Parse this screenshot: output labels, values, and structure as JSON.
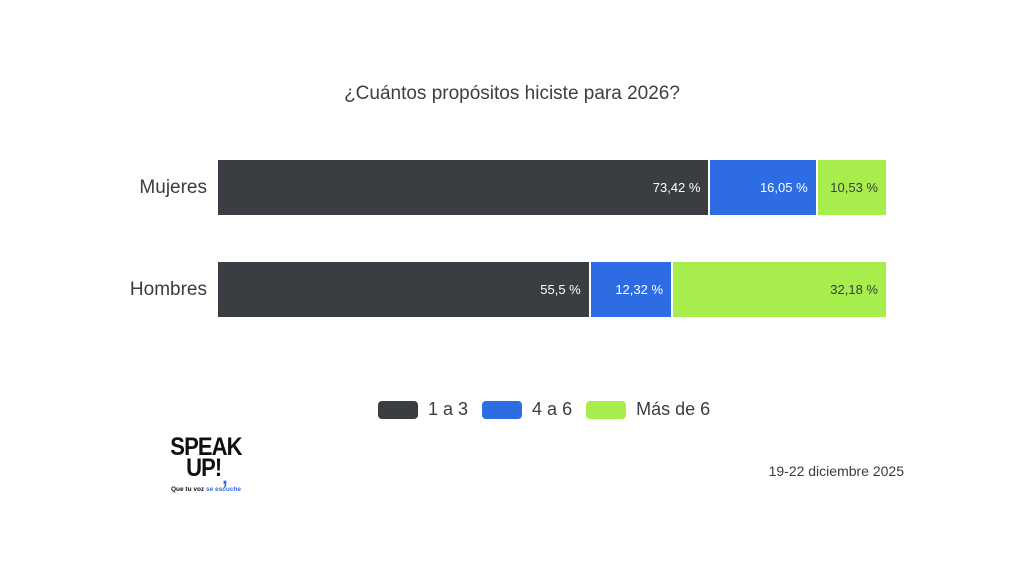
{
  "title": "¿Cuántos propósitos hiciste para 2026?",
  "chart_data": {
    "type": "bar",
    "stacked": true,
    "orientation": "horizontal",
    "unit": "%",
    "title": "¿Cuántos propósitos hiciste para 2026?",
    "categories": [
      "Mujeres",
      "Hombres"
    ],
    "series": [
      {
        "name": "1 a 3",
        "color": "#3a3d42",
        "text_color": "#ffffff",
        "values": [
          73.42,
          55.5
        ],
        "labels": [
          "73,42 %",
          "55,5 %"
        ]
      },
      {
        "name": "4 a 6",
        "color": "#2e6ce4",
        "text_color": "#ffffff",
        "values": [
          16.05,
          12.32
        ],
        "labels": [
          "16,05 %",
          "12,32 %"
        ]
      },
      {
        "name": "Más de 6",
        "color": "#a7ed4b",
        "text_color": "#3a3d42",
        "values": [
          10.53,
          32.18
        ],
        "labels": [
          "10,53 %",
          "32,18 %"
        ]
      }
    ],
    "xlim": [
      0,
      100
    ],
    "grid": false,
    "legend_position": "bottom"
  },
  "logo": {
    "line1": "SPEAK",
    "line2": "UP!",
    "comma": ",",
    "comma_color": "#2e6ce4",
    "tagline_dark": "Que tu voz ",
    "tagline_blue": "se escuche"
  },
  "footer": {
    "date_range": "19-22 diciembre 2025"
  }
}
